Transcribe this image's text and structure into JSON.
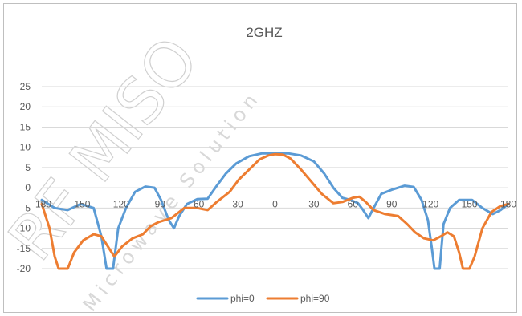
{
  "chart_data": {
    "type": "line",
    "title": "2GHZ",
    "xlabel": "",
    "ylabel": "",
    "xlim": [
      -180,
      180
    ],
    "ylim": [
      -20,
      25
    ],
    "x_ticks": [
      -180,
      -150,
      -120,
      -90,
      -60,
      -30,
      0,
      30,
      60,
      90,
      120,
      150,
      180
    ],
    "x_tick_labels": [
      "-180",
      "-150",
      "-120",
      "-90",
      "-60",
      "-30",
      "0",
      "30",
      "60",
      "90",
      "120",
      "150",
      "180"
    ],
    "y_ticks": [
      25,
      20,
      15,
      10,
      5,
      0,
      -5,
      -10,
      -15,
      -20
    ],
    "y_tick_labels": [
      "25",
      "20",
      "15",
      "10",
      "5",
      "0",
      "-5",
      "-10",
      "-15",
      "-20"
    ],
    "grid": true,
    "legend_position": "bottom",
    "series": [
      {
        "name": "phi=0",
        "color": "#5b9bd5",
        "points": [
          [
            -180,
            -3
          ],
          [
            -170,
            -5
          ],
          [
            -160,
            -5.5
          ],
          [
            -150,
            -4
          ],
          [
            -140,
            -5
          ],
          [
            -134,
            -12
          ],
          [
            -130,
            -20
          ],
          [
            -125,
            -20
          ],
          [
            -121,
            -10
          ],
          [
            -115,
            -5
          ],
          [
            -108,
            -1
          ],
          [
            -100,
            0.3
          ],
          [
            -93,
            0
          ],
          [
            -88,
            -3
          ],
          [
            -82,
            -8
          ],
          [
            -78,
            -10
          ],
          [
            -74,
            -7
          ],
          [
            -68,
            -4
          ],
          [
            -60,
            -2.8
          ],
          [
            -52,
            -2.7
          ],
          [
            -45,
            0.5
          ],
          [
            -38,
            3.5
          ],
          [
            -30,
            6
          ],
          [
            -20,
            7.8
          ],
          [
            -10,
            8.5
          ],
          [
            0,
            8.5
          ],
          [
            10,
            8.5
          ],
          [
            20,
            8
          ],
          [
            30,
            6.5
          ],
          [
            38,
            3.5
          ],
          [
            45,
            0
          ],
          [
            52,
            -2.5
          ],
          [
            58,
            -3
          ],
          [
            64,
            -3.8
          ],
          [
            68,
            -5.5
          ],
          [
            72,
            -7.5
          ],
          [
            76,
            -5
          ],
          [
            82,
            -1.5
          ],
          [
            90,
            -0.5
          ],
          [
            100,
            0.5
          ],
          [
            107,
            0.2
          ],
          [
            113,
            -3
          ],
          [
            118,
            -8
          ],
          [
            121,
            -15
          ],
          [
            123,
            -20
          ],
          [
            127,
            -20
          ],
          [
            130,
            -9
          ],
          [
            135,
            -5
          ],
          [
            142,
            -3
          ],
          [
            152,
            -3
          ],
          [
            160,
            -5
          ],
          [
            168,
            -6.5
          ],
          [
            174,
            -5.5
          ],
          [
            180,
            -4
          ]
        ]
      },
      {
        "name": "phi=90",
        "color": "#ed7d31",
        "points": [
          [
            -180,
            -4
          ],
          [
            -174,
            -10
          ],
          [
            -170,
            -17
          ],
          [
            -167,
            -20
          ],
          [
            -160,
            -20
          ],
          [
            -155,
            -16
          ],
          [
            -148,
            -13
          ],
          [
            -140,
            -11.5
          ],
          [
            -134,
            -12
          ],
          [
            -128,
            -15
          ],
          [
            -124,
            -17
          ],
          [
            -118,
            -14.5
          ],
          [
            -110,
            -12.5
          ],
          [
            -102,
            -11.5
          ],
          [
            -96,
            -9.5
          ],
          [
            -90,
            -8.5
          ],
          [
            -80,
            -7.5
          ],
          [
            -70,
            -5
          ],
          [
            -60,
            -5
          ],
          [
            -52,
            -5.5
          ],
          [
            -45,
            -3.5
          ],
          [
            -35,
            -1
          ],
          [
            -28,
            2
          ],
          [
            -20,
            4.5
          ],
          [
            -12,
            7
          ],
          [
            -5,
            8
          ],
          [
            0,
            8.3
          ],
          [
            6,
            8.2
          ],
          [
            12,
            7.2
          ],
          [
            20,
            4.5
          ],
          [
            28,
            1.5
          ],
          [
            36,
            -1.5
          ],
          [
            45,
            -3.8
          ],
          [
            52,
            -3.5
          ],
          [
            60,
            -2.5
          ],
          [
            65,
            -2.2
          ],
          [
            70,
            -3.5
          ],
          [
            76,
            -5.5
          ],
          [
            85,
            -6.5
          ],
          [
            95,
            -7
          ],
          [
            102,
            -9
          ],
          [
            108,
            -11
          ],
          [
            115,
            -12.5
          ],
          [
            122,
            -13
          ],
          [
            128,
            -12
          ],
          [
            133,
            -11
          ],
          [
            138,
            -12
          ],
          [
            142,
            -16
          ],
          [
            145,
            -20
          ],
          [
            150,
            -20
          ],
          [
            154,
            -17
          ],
          [
            160,
            -10
          ],
          [
            167,
            -6
          ],
          [
            174,
            -4.5
          ],
          [
            180,
            -4
          ]
        ]
      }
    ],
    "watermark_texts": [
      "RF MISO",
      "Microwave Solution"
    ]
  }
}
